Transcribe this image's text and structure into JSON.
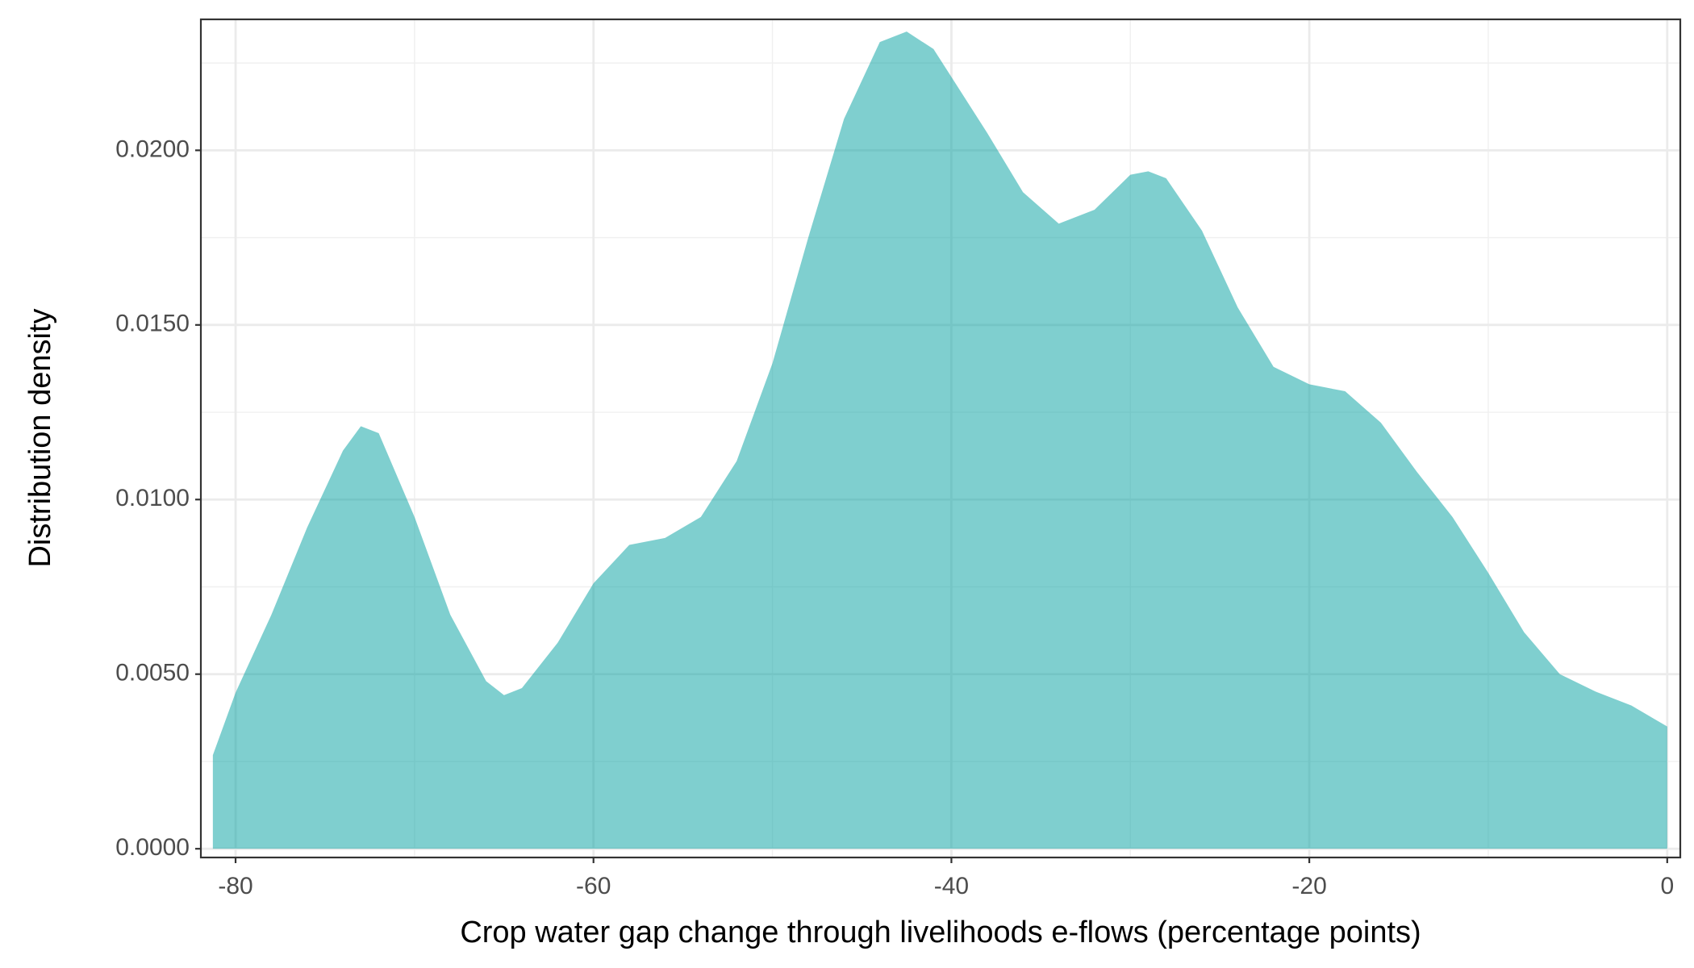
{
  "chart_data": {
    "type": "area",
    "x_label": "Crop water gap change through livelihoods e-flows (percentage points)",
    "y_label": "Distribution density",
    "x": [
      -81.27,
      -80,
      -78,
      -76,
      -74,
      -73,
      -72,
      -70,
      -68,
      -66,
      -65,
      -64,
      -62,
      -60,
      -58,
      -56,
      -54,
      -52,
      -50,
      -48,
      -46,
      -44,
      -42.5,
      -41,
      -40,
      -38,
      -36,
      -34,
      -32,
      -30,
      -29,
      -28,
      -26,
      -24,
      -22,
      -20,
      -18,
      -16,
      -14,
      -12,
      -10,
      -8,
      -6,
      -4,
      -2,
      0
    ],
    "values": [
      0.00268,
      0.00447,
      0.0067,
      0.0092,
      0.0114,
      0.0121,
      0.0119,
      0.0095,
      0.0067,
      0.0048,
      0.0044,
      0.0046,
      0.0059,
      0.0076,
      0.0087,
      0.0089,
      0.0095,
      0.0111,
      0.0139,
      0.0175,
      0.0209,
      0.0231,
      0.0234,
      0.0229,
      0.0221,
      0.0205,
      0.0188,
      0.0179,
      0.0183,
      0.0193,
      0.0194,
      0.0192,
      0.0177,
      0.0155,
      0.0138,
      0.0133,
      0.0131,
      0.0122,
      0.0108,
      0.0095,
      0.0079,
      0.0062,
      0.005,
      0.0045,
      0.0041,
      0.0035
    ],
    "color": "#00a0a0",
    "alpha": 0.5,
    "xlim": [
      -81.94,
      0.73
    ],
    "xticks": [
      -80,
      -60,
      -40,
      -20,
      0
    ],
    "ylim": [
      -0.00025,
      0.02375
    ],
    "yticks": [
      {
        "value": 0,
        "label": "0.0000"
      },
      {
        "value": 0.005,
        "label": "0.0050"
      },
      {
        "value": 0.01,
        "label": "0.0100"
      },
      {
        "value": 0.015,
        "label": "0.0150"
      },
      {
        "value": 0.02,
        "label": "0.0200"
      }
    ],
    "grid": true
  }
}
